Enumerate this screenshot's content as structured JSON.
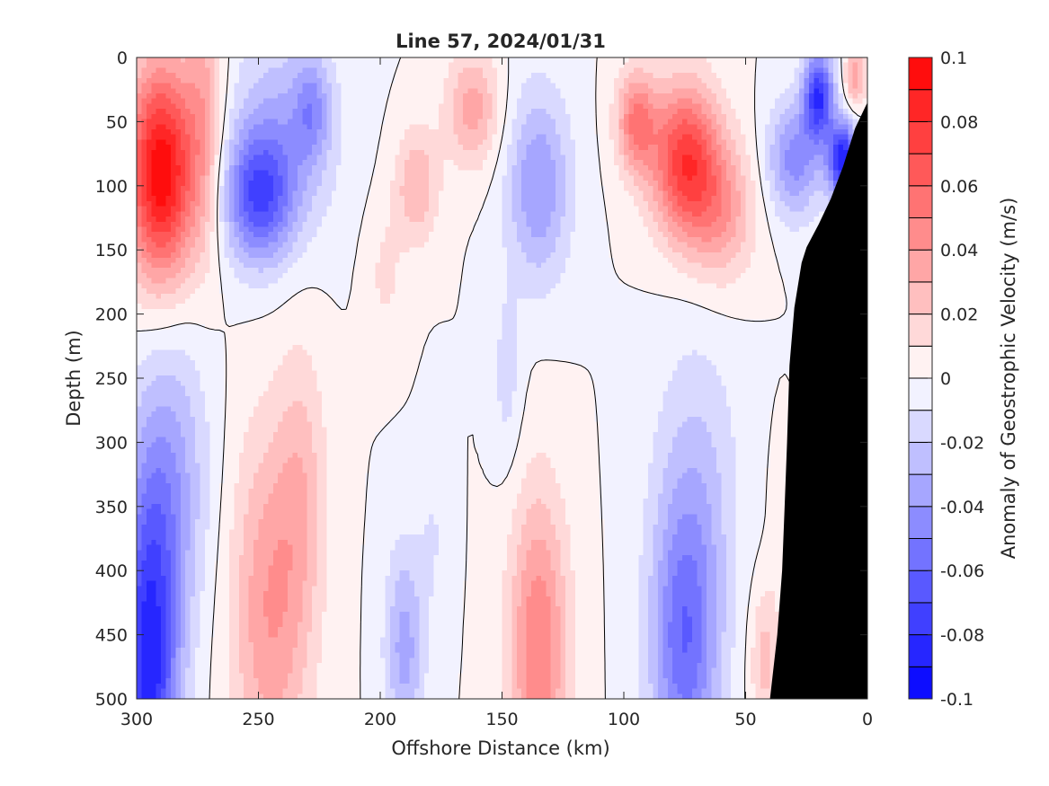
{
  "chart_data": {
    "type": "heatmap",
    "subtype": "filled-contour section",
    "title": "Line 57, 2024/01/31",
    "xlabel": "Offshore Distance (km)",
    "ylabel": "Depth (m)",
    "xlim": [
      300,
      0
    ],
    "x_reversed": true,
    "ylim": [
      0,
      500
    ],
    "y_reversed": true,
    "xticks": [
      300,
      250,
      200,
      150,
      100,
      50,
      0
    ],
    "yticks": [
      0,
      50,
      100,
      150,
      200,
      250,
      300,
      350,
      400,
      450,
      500
    ],
    "colorbar": {
      "label": "Anomaly of Geostrophic Velocity (m/s)",
      "limits": [
        -0.1,
        0.1
      ],
      "levels": [
        -0.1,
        -0.09,
        -0.08,
        -0.07,
        -0.06,
        -0.05,
        -0.04,
        -0.03,
        -0.02,
        -0.01,
        0,
        0.01,
        0.02,
        0.03,
        0.04,
        0.05,
        0.06,
        0.07,
        0.08,
        0.09,
        0.1
      ],
      "ticks": [
        0.1,
        0.08,
        0.06,
        0.04,
        0.02,
        0,
        -0.02,
        -0.04,
        -0.06,
        -0.08,
        -0.1
      ],
      "tick_labels": [
        "0.1",
        "0.08",
        "0.06",
        "0.04",
        "0.02",
        "0",
        "-0.02",
        "-0.04",
        "-0.06",
        "-0.08",
        "-0.1"
      ],
      "neg_color": "#0000ff",
      "pos_color": "#ff0000",
      "zero_color": "#ffffff"
    },
    "zero_contour_color": "#000000",
    "bathymetry": {
      "color": "#000000",
      "points": [
        [
          0,
          35
        ],
        [
          5,
          55
        ],
        [
          10,
          85
        ],
        [
          15,
          110
        ],
        [
          20,
          130
        ],
        [
          25,
          148
        ],
        [
          27,
          160
        ],
        [
          30,
          195
        ],
        [
          32,
          240
        ],
        [
          33,
          300
        ],
        [
          34,
          350
        ],
        [
          35,
          400
        ],
        [
          37,
          450
        ],
        [
          40,
          500
        ]
      ]
    },
    "features": [
      {
        "x": 290,
        "y": 90,
        "sx": 14,
        "sy": 85,
        "value": 0.1
      },
      {
        "x": 272,
        "y": 40,
        "sx": 8,
        "sy": 110,
        "value": 0.03
      },
      {
        "x": 250,
        "y": 110,
        "sx": 14,
        "sy": 50,
        "value": -0.06
      },
      {
        "x": 240,
        "y": 60,
        "sx": 22,
        "sy": 80,
        "value": -0.03
      },
      {
        "x": 228,
        "y": 40,
        "sx": 7,
        "sy": 40,
        "value": -0.03
      },
      {
        "x": 185,
        "y": 100,
        "sx": 9,
        "sy": 45,
        "value": 0.03
      },
      {
        "x": 198,
        "y": 170,
        "sx": 8,
        "sy": 55,
        "value": 0.012
      },
      {
        "x": 162,
        "y": 40,
        "sx": 11,
        "sy": 45,
        "value": 0.035
      },
      {
        "x": 135,
        "y": 100,
        "sx": 13,
        "sy": 75,
        "value": -0.04
      },
      {
        "x": 148,
        "y": 250,
        "sx": 6,
        "sy": 70,
        "value": -0.015
      },
      {
        "x": 75,
        "y": 80,
        "sx": 14,
        "sy": 60,
        "value": 0.075
      },
      {
        "x": 95,
        "y": 50,
        "sx": 8,
        "sy": 40,
        "value": 0.05
      },
      {
        "x": 60,
        "y": 120,
        "sx": 14,
        "sy": 55,
        "value": 0.035
      },
      {
        "x": 30,
        "y": 80,
        "sx": 11,
        "sy": 45,
        "value": -0.045
      },
      {
        "x": 20,
        "y": 30,
        "sx": 6,
        "sy": 35,
        "value": -0.08
      },
      {
        "x": 10,
        "y": 80,
        "sx": 6,
        "sy": 30,
        "value": -0.09
      },
      {
        "x": 5,
        "y": 15,
        "sx": 4,
        "sy": 25,
        "value": 0.04
      },
      {
        "x": 295,
        "y": 480,
        "sx": 12,
        "sy": 150,
        "value": -0.085
      },
      {
        "x": 285,
        "y": 330,
        "sx": 15,
        "sy": 120,
        "value": -0.03
      },
      {
        "x": 245,
        "y": 430,
        "sx": 16,
        "sy": 140,
        "value": 0.04
      },
      {
        "x": 232,
        "y": 330,
        "sx": 10,
        "sy": 110,
        "value": 0.02
      },
      {
        "x": 190,
        "y": 460,
        "sx": 8,
        "sy": 80,
        "value": -0.035
      },
      {
        "x": 178,
        "y": 370,
        "sx": 6,
        "sy": 70,
        "value": -0.01
      },
      {
        "x": 135,
        "y": 460,
        "sx": 12,
        "sy": 120,
        "value": 0.05
      },
      {
        "x": 75,
        "y": 460,
        "sx": 14,
        "sy": 110,
        "value": -0.055
      },
      {
        "x": 70,
        "y": 330,
        "sx": 18,
        "sy": 120,
        "value": -0.02
      },
      {
        "x": 42,
        "y": 470,
        "sx": 6,
        "sy": 60,
        "value": 0.025
      },
      {
        "x": 36,
        "y": 360,
        "sx": 4,
        "sy": 60,
        "value": 0.01
      }
    ]
  }
}
